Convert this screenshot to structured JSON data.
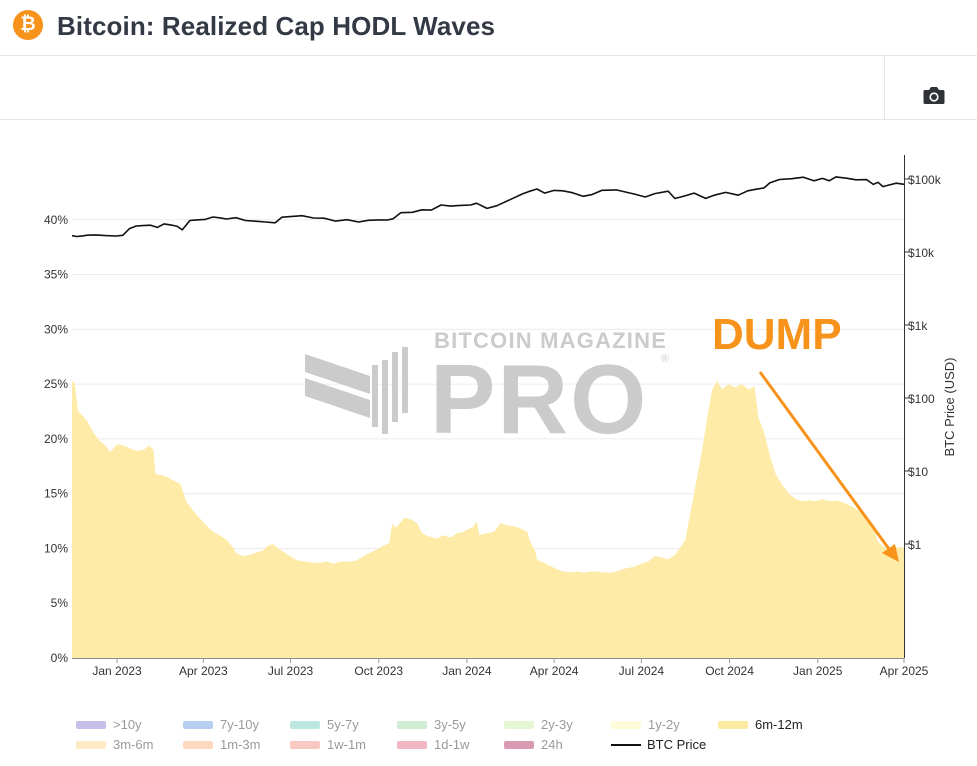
{
  "header": {
    "logo_symbol": "₿",
    "title": "Bitcoin: Realized Cap HODL Waves"
  },
  "toolbar": {
    "camera_icon": "camera-icon"
  },
  "watermark": {
    "line1": "BITCOIN MAGAZINE",
    "line2": "PRO",
    "registered": "®"
  },
  "annotation": {
    "text": "DUMP",
    "color": "#f7931a"
  },
  "chart_data": {
    "type": "area",
    "title": "Bitcoin: Realized Cap HODL Waves",
    "left_axis": {
      "ticks": [
        "0%",
        "5%",
        "10%",
        "15%",
        "20%",
        "25%",
        "30%",
        "35%",
        "40%"
      ],
      "ylim": [
        0,
        45
      ]
    },
    "right_axis": {
      "label": "BTC Price (USD)",
      "scale": "log",
      "ticks": [
        "$1",
        "$10",
        "$100",
        "$1k",
        "$10k",
        "$100k"
      ]
    },
    "x_axis": {
      "ticks": [
        "Jan 2023",
        "Apr 2023",
        "Jul 2023",
        "Oct 2023",
        "Jan 2024",
        "Apr 2024",
        "Jul 2024",
        "Oct 2024",
        "Jan 2025",
        "Apr 2025"
      ]
    },
    "x_range": [
      "2022-11-15",
      "2025-04-01"
    ],
    "series": [
      {
        "name": "6m-12m",
        "color": "#fdeaa0",
        "points": [
          [
            "2022-11-15",
            25.3
          ],
          [
            "2022-11-18",
            25.0
          ],
          [
            "2022-11-21",
            22.6
          ],
          [
            "2022-12-01",
            21.6
          ],
          [
            "2022-12-08",
            20.5
          ],
          [
            "2022-12-14",
            19.8
          ],
          [
            "2022-12-20",
            19.4
          ],
          [
            "2022-12-25",
            18.8
          ],
          [
            "2023-01-01",
            19.5
          ],
          [
            "2023-01-08",
            19.4
          ],
          [
            "2023-01-15",
            19.1
          ],
          [
            "2023-01-22",
            18.9
          ],
          [
            "2023-01-29",
            19.0
          ],
          [
            "2023-02-03",
            19.4
          ],
          [
            "2023-02-08",
            19.0
          ],
          [
            "2023-02-10",
            16.8
          ],
          [
            "2023-02-20",
            16.6
          ],
          [
            "2023-03-01",
            16.2
          ],
          [
            "2023-03-08",
            15.9
          ],
          [
            "2023-03-12",
            14.9
          ],
          [
            "2023-03-14",
            14.3
          ],
          [
            "2023-03-20",
            13.6
          ],
          [
            "2023-03-27",
            12.9
          ],
          [
            "2023-04-03",
            12.2
          ],
          [
            "2023-04-10",
            11.6
          ],
          [
            "2023-04-18",
            11.2
          ],
          [
            "2023-04-25",
            10.8
          ],
          [
            "2023-05-02",
            10.1
          ],
          [
            "2023-05-05",
            9.6
          ],
          [
            "2023-05-12",
            9.3
          ],
          [
            "2023-05-19",
            9.4
          ],
          [
            "2023-05-26",
            9.6
          ],
          [
            "2023-06-02",
            9.8
          ],
          [
            "2023-06-08",
            10.3
          ],
          [
            "2023-06-13",
            10.4
          ],
          [
            "2023-06-18",
            10.0
          ],
          [
            "2023-06-25",
            9.6
          ],
          [
            "2023-07-02",
            9.2
          ],
          [
            "2023-07-09",
            8.9
          ],
          [
            "2023-07-16",
            8.8
          ],
          [
            "2023-07-24",
            8.7
          ],
          [
            "2023-08-01",
            8.7
          ],
          [
            "2023-08-08",
            8.8
          ],
          [
            "2023-08-15",
            8.6
          ],
          [
            "2023-08-22",
            8.8
          ],
          [
            "2023-09-01",
            8.8
          ],
          [
            "2023-09-08",
            8.9
          ],
          [
            "2023-09-15",
            9.3
          ],
          [
            "2023-09-22",
            9.6
          ],
          [
            "2023-09-29",
            9.9
          ],
          [
            "2023-10-05",
            10.2
          ],
          [
            "2023-10-12",
            10.5
          ],
          [
            "2023-10-15",
            12.3
          ],
          [
            "2023-10-18",
            11.9
          ],
          [
            "2023-10-22",
            12.2
          ],
          [
            "2023-10-28",
            12.8
          ],
          [
            "2023-11-05",
            12.6
          ],
          [
            "2023-11-10",
            12.3
          ],
          [
            "2023-11-15",
            11.4
          ],
          [
            "2023-11-22",
            11.1
          ],
          [
            "2023-12-01",
            10.9
          ],
          [
            "2023-12-07",
            11.2
          ],
          [
            "2023-12-15",
            11.0
          ],
          [
            "2023-12-22",
            11.4
          ],
          [
            "2023-12-28",
            11.5
          ],
          [
            "2024-01-03",
            11.8
          ],
          [
            "2024-01-08",
            12.0
          ],
          [
            "2024-01-11",
            12.5
          ],
          [
            "2024-01-14",
            11.2
          ],
          [
            "2024-01-22",
            11.4
          ],
          [
            "2024-01-29",
            11.5
          ],
          [
            "2024-02-05",
            12.3
          ],
          [
            "2024-02-12",
            12.1
          ],
          [
            "2024-02-20",
            12.0
          ],
          [
            "2024-02-27",
            11.8
          ],
          [
            "2024-03-04",
            11.5
          ],
          [
            "2024-03-07",
            10.6
          ],
          [
            "2024-03-12",
            9.8
          ],
          [
            "2024-03-14",
            9.0
          ],
          [
            "2024-03-21",
            8.7
          ],
          [
            "2024-03-28",
            8.4
          ],
          [
            "2024-04-04",
            8.1
          ],
          [
            "2024-04-11",
            7.9
          ],
          [
            "2024-04-18",
            7.8
          ],
          [
            "2024-04-25",
            7.9
          ],
          [
            "2024-05-02",
            7.8
          ],
          [
            "2024-05-09",
            7.9
          ],
          [
            "2024-05-16",
            7.9
          ],
          [
            "2024-05-23",
            7.8
          ],
          [
            "2024-06-01",
            7.8
          ],
          [
            "2024-06-08",
            8.0
          ],
          [
            "2024-06-15",
            8.2
          ],
          [
            "2024-06-22",
            8.3
          ],
          [
            "2024-07-01",
            8.6
          ],
          [
            "2024-07-08",
            8.8
          ],
          [
            "2024-07-15",
            9.3
          ],
          [
            "2024-07-22",
            9.2
          ],
          [
            "2024-07-29",
            9.0
          ],
          [
            "2024-08-05",
            9.4
          ],
          [
            "2024-08-12",
            10.3
          ],
          [
            "2024-08-16",
            10.8
          ],
          [
            "2024-08-19",
            12.3
          ],
          [
            "2024-08-24",
            14.5
          ],
          [
            "2024-08-29",
            16.9
          ],
          [
            "2024-09-03",
            19.3
          ],
          [
            "2024-09-08",
            22.1
          ],
          [
            "2024-09-13",
            24.5
          ],
          [
            "2024-09-18",
            25.3
          ],
          [
            "2024-09-23",
            24.5
          ],
          [
            "2024-09-30",
            25.0
          ],
          [
            "2024-10-07",
            24.7
          ],
          [
            "2024-10-14",
            25.0
          ],
          [
            "2024-10-21",
            24.5
          ],
          [
            "2024-10-27",
            24.8
          ],
          [
            "2024-10-31",
            22.0
          ],
          [
            "2024-11-06",
            20.6
          ],
          [
            "2024-11-13",
            18.2
          ],
          [
            "2024-11-18",
            16.8
          ],
          [
            "2024-11-25",
            15.8
          ],
          [
            "2024-12-02",
            15.0
          ],
          [
            "2024-12-09",
            14.5
          ],
          [
            "2024-12-16",
            14.3
          ],
          [
            "2024-12-23",
            14.4
          ],
          [
            "2024-12-30",
            14.3
          ],
          [
            "2025-01-06",
            14.5
          ],
          [
            "2025-01-13",
            14.3
          ],
          [
            "2025-01-20",
            14.4
          ],
          [
            "2025-01-27",
            14.2
          ],
          [
            "2025-02-01",
            14.0
          ],
          [
            "2025-02-08",
            13.7
          ],
          [
            "2025-02-15",
            13.3
          ],
          [
            "2025-02-22",
            12.6
          ],
          [
            "2025-03-01",
            11.6
          ],
          [
            "2025-03-05",
            10.6
          ],
          [
            "2025-03-10",
            10.2
          ],
          [
            "2025-03-17",
            9.8
          ],
          [
            "2025-03-24",
            10.1
          ],
          [
            "2025-04-01",
            10.1
          ]
        ]
      },
      {
        "name": "BTC Price",
        "color": "#111111",
        "points": [
          [
            "2022-11-15",
            16700
          ],
          [
            "2022-11-20",
            16300
          ],
          [
            "2022-11-25",
            16500
          ],
          [
            "2022-12-01",
            17000
          ],
          [
            "2022-12-10",
            17150
          ],
          [
            "2022-12-20",
            16800
          ],
          [
            "2022-12-31",
            16550
          ],
          [
            "2023-01-07",
            16950
          ],
          [
            "2023-01-14",
            20900
          ],
          [
            "2023-01-21",
            22700
          ],
          [
            "2023-01-28",
            23000
          ],
          [
            "2023-02-05",
            23300
          ],
          [
            "2023-02-12",
            21700
          ],
          [
            "2023-02-19",
            24300
          ],
          [
            "2023-02-26",
            23500
          ],
          [
            "2023-03-05",
            22400
          ],
          [
            "2023-03-10",
            20100
          ],
          [
            "2023-03-18",
            27000
          ],
          [
            "2023-03-25",
            27500
          ],
          [
            "2023-04-03",
            28000
          ],
          [
            "2023-04-11",
            30200
          ],
          [
            "2023-04-18",
            29400
          ],
          [
            "2023-04-25",
            28300
          ],
          [
            "2023-05-05",
            29500
          ],
          [
            "2023-05-15",
            27000
          ],
          [
            "2023-05-25",
            26400
          ],
          [
            "2023-06-05",
            25800
          ],
          [
            "2023-06-15",
            25100
          ],
          [
            "2023-06-22",
            30000
          ],
          [
            "2023-07-01",
            30500
          ],
          [
            "2023-07-13",
            31400
          ],
          [
            "2023-07-25",
            29200
          ],
          [
            "2023-08-05",
            29000
          ],
          [
            "2023-08-17",
            26500
          ],
          [
            "2023-08-29",
            27700
          ],
          [
            "2023-09-10",
            25800
          ],
          [
            "2023-09-20",
            27200
          ],
          [
            "2023-10-01",
            27500
          ],
          [
            "2023-10-10",
            27400
          ],
          [
            "2023-10-16",
            28500
          ],
          [
            "2023-10-24",
            34500
          ],
          [
            "2023-11-05",
            35000
          ],
          [
            "2023-11-15",
            37800
          ],
          [
            "2023-11-25",
            37500
          ],
          [
            "2023-12-05",
            44000
          ],
          [
            "2023-12-15",
            42500
          ],
          [
            "2023-12-25",
            43500
          ],
          [
            "2024-01-05",
            44000
          ],
          [
            "2024-01-11",
            46600
          ],
          [
            "2024-01-22",
            39500
          ],
          [
            "2024-02-01",
            43000
          ],
          [
            "2024-02-15",
            52000
          ],
          [
            "2024-02-28",
            62500
          ],
          [
            "2024-03-05",
            67000
          ],
          [
            "2024-03-14",
            73000
          ],
          [
            "2024-03-22",
            64000
          ],
          [
            "2024-04-01",
            69700
          ],
          [
            "2024-04-10",
            69000
          ],
          [
            "2024-04-20",
            64900
          ],
          [
            "2024-05-01",
            58000
          ],
          [
            "2024-05-10",
            61000
          ],
          [
            "2024-05-21",
            70000
          ],
          [
            "2024-06-05",
            71000
          ],
          [
            "2024-06-15",
            66200
          ],
          [
            "2024-06-25",
            61500
          ],
          [
            "2024-07-05",
            56700
          ],
          [
            "2024-07-15",
            63000
          ],
          [
            "2024-07-29",
            68000
          ],
          [
            "2024-08-05",
            54000
          ],
          [
            "2024-08-15",
            58500
          ],
          [
            "2024-08-25",
            64000
          ],
          [
            "2024-09-06",
            54200
          ],
          [
            "2024-09-15",
            60000
          ],
          [
            "2024-09-27",
            65500
          ],
          [
            "2024-10-10",
            60000
          ],
          [
            "2024-10-20",
            69000
          ],
          [
            "2024-10-29",
            72500
          ],
          [
            "2024-11-06",
            75500
          ],
          [
            "2024-11-12",
            88500
          ],
          [
            "2024-11-22",
            98500
          ],
          [
            "2024-12-05",
            101000
          ],
          [
            "2024-12-17",
            106000
          ],
          [
            "2024-12-28",
            94500
          ],
          [
            "2025-01-06",
            102000
          ],
          [
            "2025-01-13",
            94500
          ],
          [
            "2025-01-20",
            107000
          ],
          [
            "2025-01-31",
            102500
          ],
          [
            "2025-02-10",
            97500
          ],
          [
            "2025-02-21",
            98000
          ],
          [
            "2025-02-28",
            84300
          ],
          [
            "2025-03-05",
            90000
          ],
          [
            "2025-03-10",
            78600
          ],
          [
            "2025-03-17",
            83000
          ],
          [
            "2025-03-24",
            87500
          ],
          [
            "2025-04-01",
            84500
          ]
        ]
      }
    ]
  },
  "legend": [
    {
      "label": ">10y",
      "color": "#c3bfe6",
      "type": "area"
    },
    {
      "label": "7y-10y",
      "color": "#b6cff0",
      "type": "area"
    },
    {
      "label": "5y-7y",
      "color": "#bde8e2",
      "type": "area"
    },
    {
      "label": "3y-5y",
      "color": "#cfeed4",
      "type": "area"
    },
    {
      "label": "2y-3y",
      "color": "#e6f7d4",
      "type": "area"
    },
    {
      "label": "1y-2y",
      "color": "#fdfbd8",
      "type": "area"
    },
    {
      "label": "6m-12m",
      "color": "#fdeaa0",
      "type": "area"
    },
    {
      "label": "3m-6m",
      "color": "#fdebc6",
      "type": "area"
    },
    {
      "label": "1m-3m",
      "color": "#fcd8bf",
      "type": "area"
    },
    {
      "label": "1w-1m",
      "color": "#f9c8c3",
      "type": "area"
    },
    {
      "label": "1d-1w",
      "color": "#f0b6c2",
      "type": "area"
    },
    {
      "label": "24h",
      "color": "#d99ab3",
      "type": "area"
    },
    {
      "label": "BTC Price",
      "color": "#111111",
      "type": "line"
    }
  ]
}
